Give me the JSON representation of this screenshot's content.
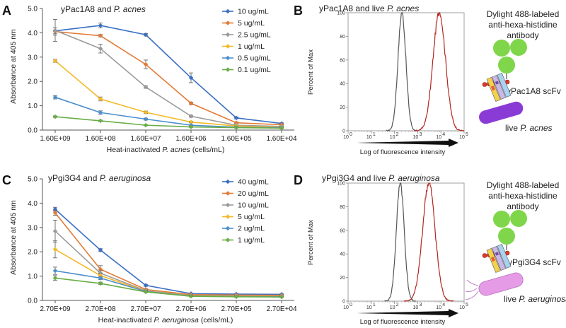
{
  "panel_letters": {
    "a": "A",
    "b": "B",
    "c": "C",
    "d": "D"
  },
  "chart_data": [
    {
      "type": "line",
      "title_prefix": "yPac1A8 and ",
      "title_italic": "P. acnes",
      "ylabel": "Absorbance at 405 nm",
      "xlabel_prefix": "Heat-inactivated ",
      "xlabel_italic": "P. acnes",
      "xlabel_suffix": " (cells/mL)",
      "categories": [
        "1.60E+09",
        "1.60E+08",
        "1.60E+07",
        "1.60E+06",
        "1.60E+05",
        "1.60E+04"
      ],
      "ylim": [
        0,
        5
      ],
      "yticks": [
        "0.0",
        "1.0",
        "2.0",
        "3.0",
        "4.0",
        "5.0"
      ],
      "legend_position": "top-right",
      "series": [
        {
          "name": "10 ug/mL",
          "color": "#3a6fc4",
          "values": [
            4.08,
            4.3,
            3.92,
            2.15,
            0.5,
            0.27
          ],
          "errors": [
            0.12,
            0.1,
            0.05,
            0.2,
            0.04,
            0.03
          ]
        },
        {
          "name": "5 ug/mL",
          "color": "#e27a35",
          "values": [
            4.05,
            3.88,
            2.7,
            1.1,
            0.3,
            0.22
          ],
          "errors": [
            0.15,
            0.05,
            0.18,
            0.05,
            0.03,
            0.02
          ]
        },
        {
          "name": "2.5 ug/mL",
          "color": "#9a9a9a",
          "values": [
            4.1,
            3.35,
            1.77,
            0.57,
            0.2,
            0.15
          ],
          "errors": [
            0.45,
            0.18,
            0.05,
            0.04,
            0.02,
            0.02
          ]
        },
        {
          "name": "1 ug/mL",
          "color": "#f3b928",
          "values": [
            2.85,
            1.28,
            0.73,
            0.33,
            0.17,
            0.12
          ],
          "errors": [
            0.06,
            0.08,
            0.05,
            0.03,
            0.02,
            0.02
          ]
        },
        {
          "name": "0.5 ug/mL",
          "color": "#4c8fcf",
          "values": [
            1.35,
            0.72,
            0.45,
            0.2,
            0.12,
            0.1
          ],
          "errors": [
            0.07,
            0.07,
            0.04,
            0.02,
            0.02,
            0.02
          ]
        },
        {
          "name": "0.1 ug/mL",
          "color": "#6aad45",
          "values": [
            0.55,
            0.38,
            0.2,
            0.13,
            0.1,
            0.08
          ],
          "errors": [
            0.03,
            0.03,
            0.02,
            0.02,
            0.02,
            0.02
          ]
        }
      ]
    },
    {
      "type": "line",
      "title_prefix": "yPgi3G4 and ",
      "title_italic": "P. aeruginosa",
      "ylabel": "Absorbance at 405 nm",
      "xlabel_prefix": "Heat-inactivated ",
      "xlabel_italic": "P. aeruginosa",
      "xlabel_suffix": " (cells/mL)",
      "categories": [
        "2.70E+09",
        "2.70E+08",
        "2.70E+07",
        "2.70E+06",
        "2.70E+05",
        "2.70E+04"
      ],
      "ylim": [
        0,
        5
      ],
      "yticks": [
        "0.0",
        "1.0",
        "2.0",
        "3.0",
        "4.0",
        "5.0"
      ],
      "legend_position": "top-right",
      "series": [
        {
          "name": "40 ug/mL",
          "color": "#3a6fc4",
          "values": [
            3.75,
            2.07,
            0.62,
            0.28,
            0.26,
            0.25
          ],
          "errors": [
            0.08,
            0.06,
            0.04,
            0.02,
            0.02,
            0.02
          ]
        },
        {
          "name": "20 ug/mL",
          "color": "#e27a35",
          "values": [
            3.6,
            1.28,
            0.45,
            0.24,
            0.22,
            0.21
          ],
          "errors": [
            0.1,
            0.15,
            0.04,
            0.02,
            0.02,
            0.02
          ]
        },
        {
          "name": "10 ug/mL",
          "color": "#9a9a9a",
          "values": [
            2.85,
            1.12,
            0.4,
            0.2,
            0.18,
            0.17
          ],
          "errors": [
            0.45,
            0.1,
            0.03,
            0.02,
            0.02,
            0.02
          ]
        },
        {
          "name": "5 ug/mL",
          "color": "#f3b928",
          "values": [
            2.1,
            1.02,
            0.38,
            0.19,
            0.17,
            0.16
          ],
          "errors": [
            0.35,
            0.08,
            0.03,
            0.02,
            0.02,
            0.02
          ]
        },
        {
          "name": "2 ug/mL",
          "color": "#4c8fcf",
          "values": [
            1.22,
            0.92,
            0.37,
            0.18,
            0.16,
            0.15
          ],
          "errors": [
            0.15,
            0.06,
            0.03,
            0.02,
            0.02,
            0.02
          ]
        },
        {
          "name": "1 ug/mL",
          "color": "#6aad45",
          "values": [
            0.92,
            0.7,
            0.35,
            0.17,
            0.15,
            0.14
          ],
          "errors": [
            0.1,
            0.05,
            0.03,
            0.02,
            0.02,
            0.02
          ]
        }
      ]
    }
  ],
  "flow_panels": [
    {
      "title_prefix": "yPac1A8 and live ",
      "title_italic": "P. acnes",
      "ylabel": "Percent of Max",
      "xlabel": "Log of fluorescence intensity",
      "yticks": [
        "0",
        "20",
        "40",
        "60",
        "80",
        "100"
      ],
      "xtick_base": "10",
      "xtick_exponents": [
        "0",
        "1",
        "2",
        "3",
        "4",
        "5"
      ],
      "control_peak_log": 2.32,
      "sample_peak_log": 3.93,
      "control_color": "#555555",
      "sample_color": "#b3261e",
      "diagram": {
        "antibody_label_lines": [
          "Dylight 488-labeled",
          "anti-hexa-histidine",
          "antibody"
        ],
        "scfv_label": "yPac1A8 scFv",
        "cell_label_prefix": "live ",
        "cell_label_italic": "P. acnes",
        "cell_color": "#8a3bd6"
      }
    },
    {
      "title_prefix": "yPgi3G4 and live ",
      "title_italic": "P. aeruginosa",
      "ylabel": "Percent of Max",
      "xlabel": "Log of fluorescence intensity",
      "yticks": [
        "0",
        "20",
        "40",
        "60",
        "80",
        "100"
      ],
      "xtick_base": "10",
      "xtick_exponents": [
        "0",
        "1",
        "2",
        "3",
        "4",
        "5"
      ],
      "control_peak_log": 2.25,
      "sample_peak_log": 3.48,
      "control_color": "#555555",
      "sample_color": "#b3261e",
      "diagram": {
        "antibody_label_lines": [
          "Dylight 488-labeled",
          "anti-hexa-histidine",
          "antibody"
        ],
        "scfv_label": "yPgi3G4 scFv",
        "cell_label_prefix": "live ",
        "cell_label_italic": "P. aeruginosa",
        "cell_color": "#e59be6"
      }
    }
  ]
}
